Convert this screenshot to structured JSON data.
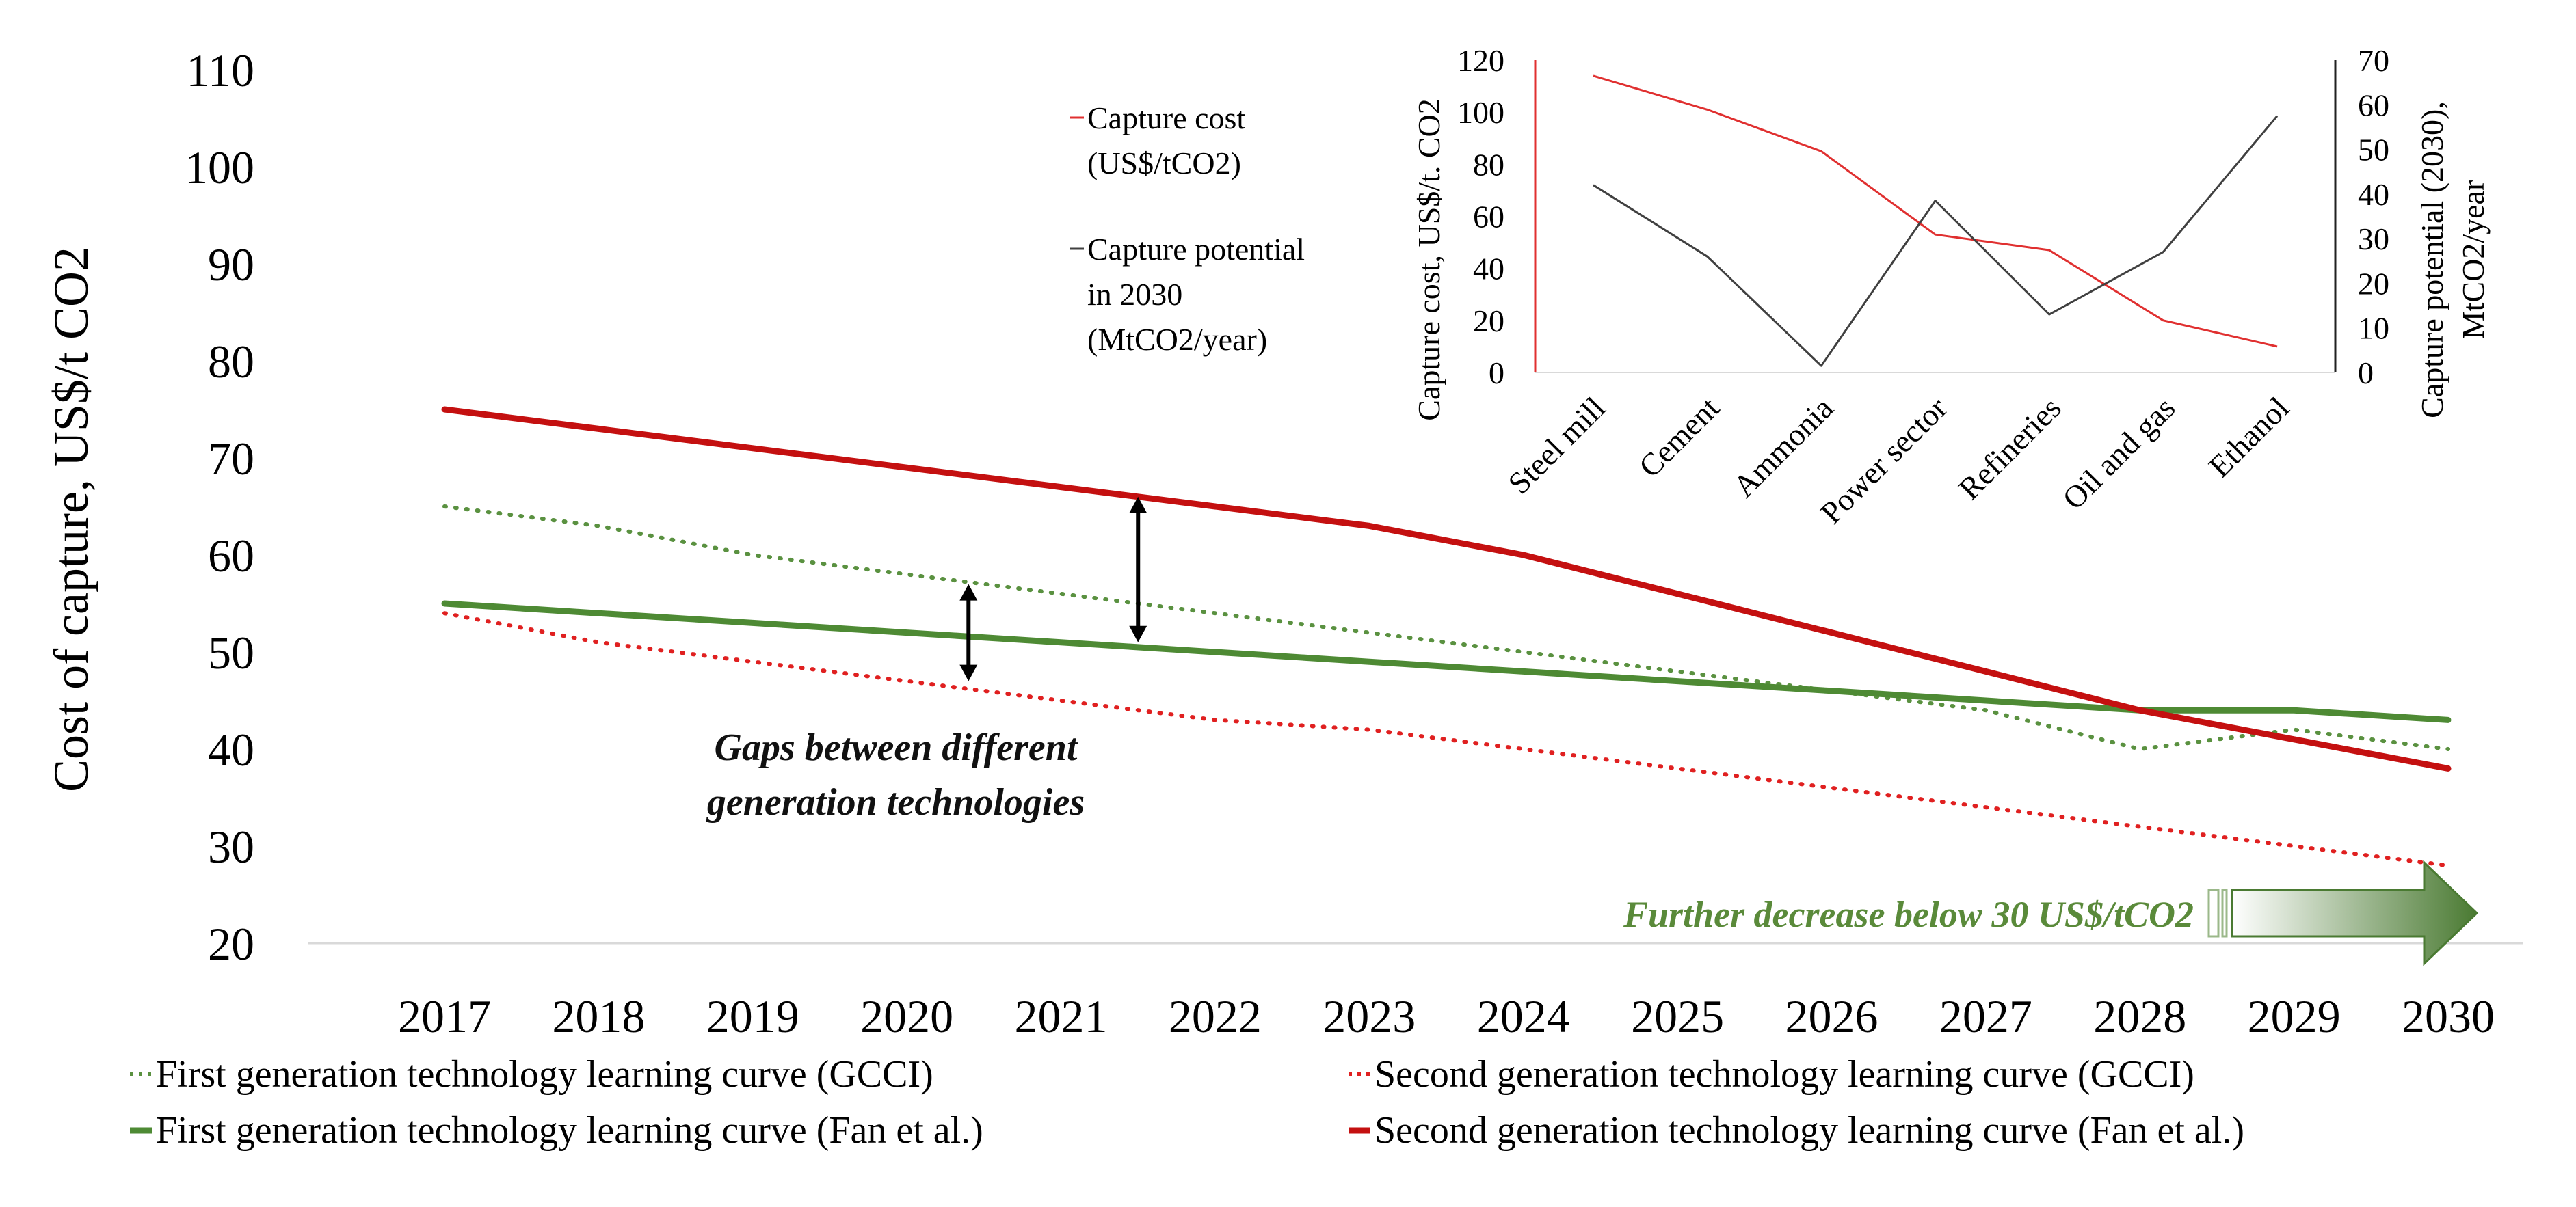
{
  "chart_data": [
    {
      "type": "line",
      "ylabel": "Cost of capture, US$/t CO2",
      "x": [
        2017,
        2018,
        2019,
        2020,
        2021,
        2022,
        2023,
        2024,
        2025,
        2026,
        2027,
        2028,
        2029,
        2030
      ],
      "x_tick_labels": [
        "2017",
        "2018",
        "2019",
        "2020",
        "2021",
        "2022",
        "2023",
        "2024",
        "2025",
        "2026",
        "2027",
        "2028",
        "2029",
        "2030"
      ],
      "ylim": [
        20,
        110
      ],
      "y_ticks": [
        20,
        30,
        40,
        50,
        60,
        70,
        80,
        90,
        100,
        110
      ],
      "y_tick_labels": [
        "20",
        "30",
        "40",
        "50",
        "60",
        "70",
        "80",
        "90",
        "100",
        "110"
      ],
      "series": [
        {
          "name": "First generation technology learning curve (GCCI)",
          "color": "#5a9140",
          "style": "dotted",
          "values": [
            65,
            63,
            60,
            58,
            56,
            54,
            52,
            50,
            48,
            46,
            44,
            40,
            42,
            40
          ]
        },
        {
          "name": "Second generation technology learning curve (GCCI)",
          "color": "#e02020",
          "style": "dotted",
          "values": [
            54,
            51,
            49,
            47,
            45,
            43,
            42,
            40,
            38,
            36,
            34,
            32,
            30,
            28
          ]
        },
        {
          "name": "First generation technology learning curve (Fan et al.)",
          "color": "#4e8a34",
          "style": "solid",
          "values": [
            55,
            54,
            53,
            52,
            51,
            50,
            49,
            48,
            47,
            46,
            45,
            44,
            44,
            43
          ]
        },
        {
          "name": "Second generation technology learning curve (Fan et al.)",
          "color": "#c41010",
          "style": "solid",
          "values": [
            75,
            73,
            71,
            69,
            67,
            65,
            63,
            60,
            56,
            52,
            48,
            44,
            41,
            38
          ]
        }
      ],
      "gap_arrows": [
        {
          "x": 2020.4,
          "from": 57,
          "to": 47
        },
        {
          "x": 2021.5,
          "from": 66,
          "to": 51
        }
      ],
      "annotations": {
        "gaps_line1": "Gaps between different",
        "gaps_line2": "generation technologies",
        "further_decrease": "Further decrease below 30 US$/tCO2"
      }
    },
    {
      "type": "line",
      "categories": [
        "Steel mill",
        "Cement",
        "Ammonia",
        "Power sector",
        "Refineries",
        "Oil and gas",
        "Ethanol"
      ],
      "ylabel_left": "Capture cost, US$/t. CO2",
      "ylabel_right_line1": "Capture potential (2030),",
      "ylabel_right_line2": "MtCO2/year",
      "ylim_left": [
        0,
        120
      ],
      "ylim_right": [
        0,
        70
      ],
      "y_ticks_left": [
        0,
        20,
        40,
        60,
        80,
        100,
        120
      ],
      "y_tick_labels_left": [
        "0",
        "20",
        "40",
        "60",
        "80",
        "100",
        "120"
      ],
      "y_ticks_right": [
        0,
        10,
        20,
        30,
        40,
        50,
        60,
        70
      ],
      "y_tick_labels_right": [
        "0",
        "10",
        "20",
        "30",
        "40",
        "50",
        "60",
        "70"
      ],
      "series": [
        {
          "name": "Capture cost (US$/tCO2)",
          "axis": "left",
          "color": "#e03030",
          "values": [
            114,
            101,
            85,
            53,
            47,
            20,
            10
          ]
        },
        {
          "name": "Capture potential in 2030 (MtCO2/year)",
          "axis": "right",
          "color": "#404040",
          "values": [
            42,
            26,
            1.5,
            38.5,
            13,
            27,
            57.5
          ]
        }
      ],
      "legend": [
        {
          "line1": "Capture cost",
          "line2": "(US$/tCO2)",
          "line3": ""
        },
        {
          "line1": "Capture potential",
          "line2": "in 2030",
          "line3": "(MtCO2/year)"
        }
      ]
    }
  ],
  "legend_main": [
    {
      "label": "First generation technology learning curve (GCCI)",
      "color": "#5a9140",
      "style": "dotted"
    },
    {
      "label": "Second generation technology learning curve (GCCI)",
      "color": "#e02020",
      "style": "dotted"
    },
    {
      "label": "First generation technology learning curve (Fan et al.)",
      "color": "#4e8a34",
      "style": "solid"
    },
    {
      "label": "Second generation technology learning curve (Fan et al.)",
      "color": "#c41010",
      "style": "solid"
    }
  ],
  "colors": {
    "arrow_green_dark": "#4a7a32",
    "arrow_green_light": "#ffffff",
    "annotation_green": "#5a8a3a",
    "axis_line": "#d9d9d9"
  }
}
